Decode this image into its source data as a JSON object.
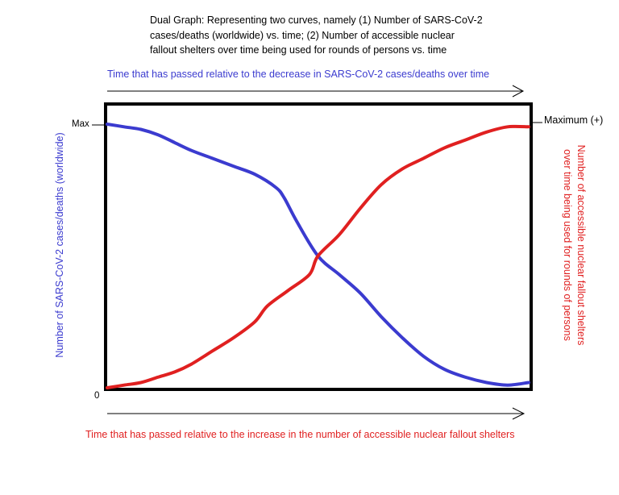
{
  "chart_data": {
    "type": "line",
    "title_lines": [
      "Dual Graph: Representing two curves, namely (1) Number of SARS-CoV-2",
      "cases/deaths (worldwide) vs. time; (2) Number of accessible nuclear",
      "fallout shelters over time being used for rounds of persons vs. time"
    ],
    "top_axis_label": "Time that has passed relative to the decrease in SARS-CoV-2 cases/deaths over time",
    "bottom_axis_label": "Time that has passed relative to the increase in the number of accessible nuclear fallout shelters",
    "left_axis_label": "Number of SARS-CoV-2 cases/deaths (worldwide)",
    "right_axis_label_lines": [
      "Number of accessible nuclear fallout shelters",
      "over time being used for rounds of persons"
    ],
    "left_ticks": {
      "max": "Max",
      "zero": "0"
    },
    "right_tick": "Maximum (+)",
    "xlim": [
      0,
      1
    ],
    "ylim": [
      0,
      1
    ],
    "grid": false,
    "series": [
      {
        "color": "#3b3bcf",
        "x": [
          0,
          0.04,
          0.08,
          0.12,
          0.16,
          0.2,
          0.25,
          0.3,
          0.35,
          0.4,
          0.42,
          0.45,
          0.5,
          0.55,
          0.6,
          0.65,
          0.7,
          0.75,
          0.8,
          0.85,
          0.9,
          0.95,
          1.0
        ],
        "y": [
          1.0,
          0.99,
          0.98,
          0.96,
          0.93,
          0.9,
          0.87,
          0.84,
          0.81,
          0.76,
          0.72,
          0.63,
          0.5,
          0.43,
          0.36,
          0.27,
          0.19,
          0.12,
          0.07,
          0.04,
          0.02,
          0.01,
          0.02
        ]
      },
      {
        "color": "#e02020",
        "x": [
          0,
          0.04,
          0.08,
          0.12,
          0.16,
          0.2,
          0.25,
          0.3,
          0.35,
          0.38,
          0.43,
          0.48,
          0.5,
          0.55,
          0.6,
          0.65,
          0.7,
          0.75,
          0.8,
          0.85,
          0.9,
          0.95,
          1.0
        ],
        "y": [
          0.0,
          0.01,
          0.02,
          0.04,
          0.06,
          0.09,
          0.14,
          0.19,
          0.25,
          0.31,
          0.37,
          0.43,
          0.5,
          0.58,
          0.68,
          0.77,
          0.83,
          0.87,
          0.91,
          0.94,
          0.97,
          0.99,
          0.99
        ]
      }
    ]
  }
}
